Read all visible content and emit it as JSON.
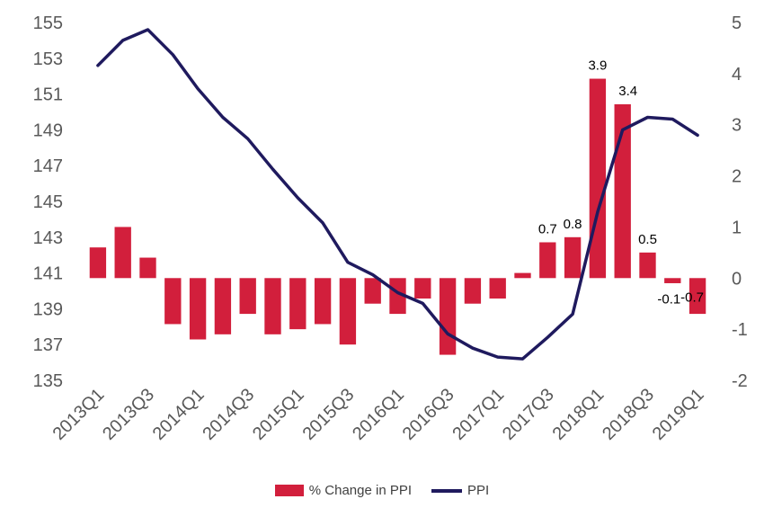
{
  "chart_data": {
    "type": "bar+line",
    "categories": [
      "2013Q1",
      "2013Q2",
      "2013Q3",
      "2013Q4",
      "2014Q1",
      "2014Q2",
      "2014Q3",
      "2014Q4",
      "2015Q1",
      "2015Q2",
      "2015Q3",
      "2015Q4",
      "2016Q1",
      "2016Q2",
      "2016Q3",
      "2016Q4",
      "2017Q1",
      "2017Q2",
      "2017Q3",
      "2017Q4",
      "2018Q1",
      "2018Q2",
      "2018Q3",
      "2018Q4",
      "2019Q1"
    ],
    "x_tick_labels": [
      "2013Q1",
      "2013Q3",
      "2014Q1",
      "2014Q3",
      "2015Q1",
      "2015Q3",
      "2016Q1",
      "2016Q3",
      "2017Q1",
      "2017Q3",
      "2018Q1",
      "2018Q3",
      "2019Q1"
    ],
    "series": [
      {
        "name": "% Change in PPI",
        "type": "bar",
        "axis": "right",
        "color": "#D21F3C",
        "values": [
          0.6,
          1.0,
          0.4,
          -0.9,
          -1.2,
          -1.1,
          -0.7,
          -1.1,
          -1.0,
          -0.9,
          -1.3,
          -0.5,
          -0.7,
          -0.4,
          -1.5,
          -0.5,
          -0.4,
          0.1,
          0.7,
          0.8,
          3.9,
          3.4,
          0.5,
          -0.1,
          -0.7
        ],
        "data_labels": {
          "18": "0.7",
          "19": "0.8",
          "20": "3.9",
          "21": "3.4",
          "22": "0.5",
          "23": "-0.1",
          "24": "-0.7"
        }
      },
      {
        "name": "PPI",
        "type": "line",
        "axis": "left",
        "color": "#1F1A5E",
        "values": [
          152.6,
          154.0,
          154.6,
          153.2,
          151.3,
          149.7,
          148.5,
          146.8,
          145.2,
          143.8,
          141.6,
          140.9,
          139.9,
          139.3,
          137.6,
          136.8,
          136.3,
          136.2,
          137.4,
          138.7,
          144.4,
          149.0,
          149.7,
          149.6,
          148.7
        ]
      }
    ],
    "y_left": {
      "min": 135,
      "max": 155,
      "ticks": [
        "155",
        "153",
        "151",
        "149",
        "147",
        "145",
        "143",
        "141",
        "139",
        "137",
        "135"
      ]
    },
    "y_right": {
      "min": -2,
      "max": 5,
      "ticks": [
        "5",
        "4",
        "3",
        "2",
        "1",
        "0",
        "-1",
        "-2"
      ]
    },
    "legend": {
      "position": "bottom",
      "entries": [
        "% Change in PPI",
        "PPI"
      ]
    },
    "grid": false
  }
}
